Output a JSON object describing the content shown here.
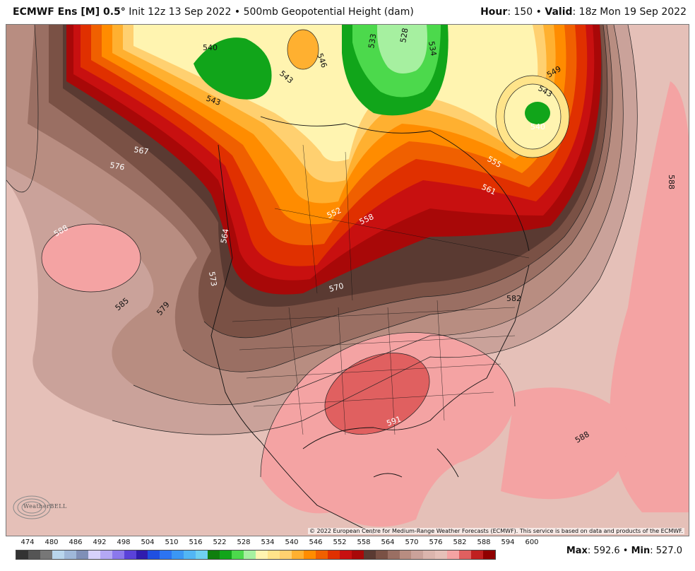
{
  "header": {
    "model": "ECMWF Ens [M] 0.5",
    "degree": "°",
    "init": "Init 12z 13 Sep 2022",
    "sep": "•",
    "field": "500mb Geopotential Height (dam)",
    "hour_label": "Hour",
    "hour_value": ": 150",
    "valid_label": "Valid",
    "valid_value": ": 18z Mon 19 Sep 2022"
  },
  "map": {
    "contour_labels": [
      "540",
      "546",
      "543",
      "543",
      "528",
      "534",
      "533",
      "549",
      "543",
      "540",
      "567",
      "576",
      "588",
      "555",
      "561",
      "552",
      "558",
      "564",
      "573",
      "570",
      "585",
      "579",
      "582",
      "588",
      "591",
      "588",
      "588"
    ],
    "copyright": "© 2022 European Centre for Medium-Range Weather Forecasts (ECMWF). This service is based on data and products of the ECMWF.",
    "logo_text": "WeatherBELL",
    "colors": {
      "ocean_far": "#e5bdb4",
      "rim_brown": "#7a5145",
      "dark_brown": "#5a3a32",
      "red": "#b50e0e",
      "orange": "#ff8c00",
      "light_orange": "#ffd070",
      "yellow": "#fff4b0",
      "green": "#0f9c14",
      "light_green": "#a6f0a0",
      "pink": "#f4a3a3",
      "dark_pink": "#e06060"
    }
  },
  "legend": {
    "labels": [
      "474",
      "480",
      "486",
      "492",
      "498",
      "504",
      "510",
      "516",
      "522",
      "528",
      "534",
      "540",
      "546",
      "552",
      "558",
      "564",
      "570",
      "576",
      "582",
      "588",
      "594",
      "600"
    ],
    "colors": [
      "#333333",
      "#555555",
      "#777777",
      "#b9d6ec",
      "#9fb8d9",
      "#7f8fb7",
      "#d7d2fb",
      "#b4a8f4",
      "#8b78ec",
      "#5a42d9",
      "#2f1cae",
      "#1f4fe0",
      "#2c74f2",
      "#3b97f4",
      "#52b6f4",
      "#6fd0f0",
      "#0f7f0e",
      "#11a51a",
      "#4cd94c",
      "#a6f0a0",
      "#fff4b0",
      "#ffe48a",
      "#ffd070",
      "#ffb030",
      "#ff8c00",
      "#f06000",
      "#e03000",
      "#c81010",
      "#a80808",
      "#5a3a32",
      "#7a5145",
      "#9a6f63",
      "#b88d81",
      "#caa29a",
      "#dbb5ad",
      "#e5c0b8",
      "#f4a3a3",
      "#e06060",
      "#c02020",
      "#900000"
    ],
    "max_label": "Max",
    "max_value": ": 592.6",
    "min_label": "Min",
    "min_value": ": 527.0",
    "sep": "•"
  }
}
